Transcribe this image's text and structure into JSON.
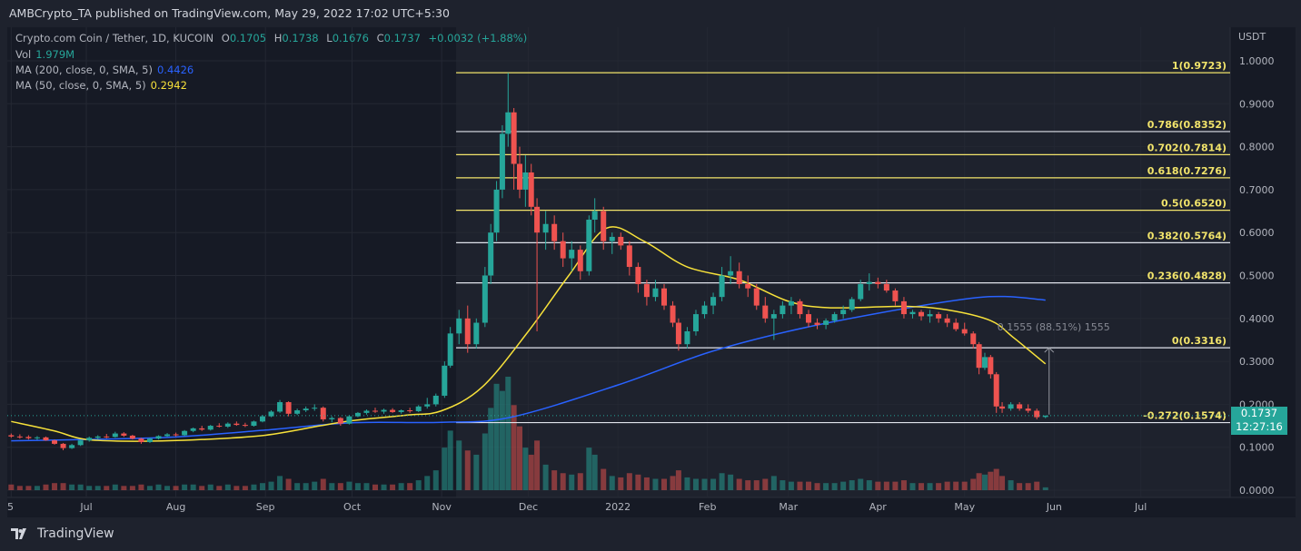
{
  "header": {
    "title": "AMBCrypto_TA published on TradingView.com, May 29, 2022 17:02 UTC+5:30"
  },
  "legend": {
    "symbol": "Crypto.com Coin / Tether, 1D, KUCOIN",
    "o_label": "O",
    "o": "0.1705",
    "h_label": "H",
    "h": "0.1738",
    "l_label": "L",
    "l": "0.1676",
    "c_label": "C",
    "c": "0.1737",
    "change": "+0.0032 (+1.88%)",
    "vol_label": "Vol",
    "vol": "1.979M",
    "ma200_label": "MA (200, close, 0, SMA, 5)",
    "ma200": "0.4426",
    "ma50_label": "MA (50, close, 0, SMA, 5)",
    "ma50": "0.2942"
  },
  "footer": {
    "brand": "TradingView"
  },
  "last_price": {
    "price": "0.1737",
    "countdown": "12:27:16"
  },
  "measure": {
    "label": "0.1555 (88.51%) 1555",
    "from": 0.1761,
    "to": 0.3316,
    "date": "2022-05-29"
  },
  "colors": {
    "up": "#26a69a",
    "down": "#ef5350",
    "ma200": "#2962ff",
    "ma50": "#f7e13a",
    "fib": "#f2e46b",
    "fib_white": "#e0e3eb",
    "background": "#161a25"
  },
  "chart_data": {
    "type": "candlestick",
    "currency": "USDT",
    "ylim": [
      0,
      1.0
    ],
    "y_ticks": [
      "1.0000",
      "0.9000",
      "0.8000",
      "0.7000",
      "0.6000",
      "0.5000",
      "0.4000",
      "0.3000",
      "0.2000",
      "0.1000",
      "0.0000"
    ],
    "x_ticks": [
      {
        "label": "5",
        "date": "2021-06-05"
      },
      {
        "label": "Jul",
        "date": "2021-07-01"
      },
      {
        "label": "Aug",
        "date": "2021-08-01"
      },
      {
        "label": "Sep",
        "date": "2021-09-01"
      },
      {
        "label": "Oct",
        "date": "2021-10-01"
      },
      {
        "label": "Nov",
        "date": "2021-11-01"
      },
      {
        "label": "Dec",
        "date": "2021-12-01"
      },
      {
        "label": "2022",
        "date": "2022-01-01"
      },
      {
        "label": "Feb",
        "date": "2022-02-01"
      },
      {
        "label": "Mar",
        "date": "2022-03-01"
      },
      {
        "label": "Apr",
        "date": "2022-04-01"
      },
      {
        "label": "May",
        "date": "2022-05-01"
      },
      {
        "label": "Jun",
        "date": "2022-06-01"
      },
      {
        "label": "Jul",
        "date": "2022-07-01"
      }
    ],
    "candles_columns": [
      "date",
      "open",
      "high",
      "low",
      "close",
      "volume_M"
    ],
    "candles": [
      [
        "2021-06-05",
        0.128,
        0.132,
        0.122,
        0.125,
        4
      ],
      [
        "2021-06-08",
        0.125,
        0.13,
        0.12,
        0.124,
        3
      ],
      [
        "2021-06-11",
        0.124,
        0.128,
        0.118,
        0.121,
        3
      ],
      [
        "2021-06-14",
        0.121,
        0.126,
        0.117,
        0.123,
        3
      ],
      [
        "2021-06-17",
        0.123,
        0.125,
        0.115,
        0.116,
        4
      ],
      [
        "2021-06-20",
        0.116,
        0.118,
        0.106,
        0.108,
        5
      ],
      [
        "2021-06-23",
        0.108,
        0.11,
        0.093,
        0.098,
        5
      ],
      [
        "2021-06-26",
        0.098,
        0.108,
        0.096,
        0.105,
        4
      ],
      [
        "2021-06-29",
        0.105,
        0.118,
        0.103,
        0.116,
        4
      ],
      [
        "2021-07-02",
        0.116,
        0.125,
        0.113,
        0.122,
        3
      ],
      [
        "2021-07-05",
        0.122,
        0.128,
        0.118,
        0.125,
        3
      ],
      [
        "2021-07-08",
        0.125,
        0.131,
        0.121,
        0.124,
        3
      ],
      [
        "2021-07-11",
        0.124,
        0.136,
        0.122,
        0.132,
        4
      ],
      [
        "2021-07-14",
        0.132,
        0.135,
        0.124,
        0.127,
        3
      ],
      [
        "2021-07-17",
        0.127,
        0.129,
        0.118,
        0.12,
        3
      ],
      [
        "2021-07-20",
        0.12,
        0.122,
        0.108,
        0.112,
        4
      ],
      [
        "2021-07-23",
        0.112,
        0.122,
        0.11,
        0.12,
        3
      ],
      [
        "2021-07-26",
        0.12,
        0.128,
        0.118,
        0.126,
        4
      ],
      [
        "2021-07-29",
        0.126,
        0.133,
        0.124,
        0.13,
        3
      ],
      [
        "2021-08-01",
        0.13,
        0.134,
        0.125,
        0.128,
        3
      ],
      [
        "2021-08-04",
        0.128,
        0.14,
        0.126,
        0.138,
        4
      ],
      [
        "2021-08-07",
        0.138,
        0.146,
        0.135,
        0.144,
        4
      ],
      [
        "2021-08-10",
        0.144,
        0.15,
        0.138,
        0.141,
        3
      ],
      [
        "2021-08-13",
        0.141,
        0.152,
        0.139,
        0.15,
        4
      ],
      [
        "2021-08-16",
        0.15,
        0.156,
        0.146,
        0.148,
        3
      ],
      [
        "2021-08-19",
        0.148,
        0.158,
        0.145,
        0.155,
        4
      ],
      [
        "2021-08-22",
        0.155,
        0.16,
        0.15,
        0.152,
        3
      ],
      [
        "2021-08-25",
        0.152,
        0.157,
        0.147,
        0.15,
        3
      ],
      [
        "2021-08-28",
        0.15,
        0.162,
        0.148,
        0.16,
        4
      ],
      [
        "2021-08-31",
        0.16,
        0.175,
        0.158,
        0.172,
        5
      ],
      [
        "2021-09-03",
        0.172,
        0.186,
        0.17,
        0.183,
        6
      ],
      [
        "2021-09-06",
        0.183,
        0.21,
        0.18,
        0.205,
        10
      ],
      [
        "2021-09-09",
        0.205,
        0.207,
        0.172,
        0.178,
        8
      ],
      [
        "2021-09-12",
        0.178,
        0.19,
        0.175,
        0.186,
        5
      ],
      [
        "2021-09-15",
        0.186,
        0.195,
        0.182,
        0.19,
        5
      ],
      [
        "2021-09-18",
        0.19,
        0.2,
        0.185,
        0.192,
        6
      ],
      [
        "2021-09-21",
        0.192,
        0.195,
        0.16,
        0.165,
        8
      ],
      [
        "2021-09-24",
        0.165,
        0.172,
        0.158,
        0.168,
        5
      ],
      [
        "2021-09-27",
        0.168,
        0.17,
        0.15,
        0.155,
        5
      ],
      [
        "2021-09-30",
        0.155,
        0.175,
        0.153,
        0.172,
        6
      ],
      [
        "2021-10-03",
        0.172,
        0.182,
        0.17,
        0.18,
        5
      ],
      [
        "2021-10-06",
        0.18,
        0.188,
        0.176,
        0.185,
        5
      ],
      [
        "2021-10-09",
        0.185,
        0.192,
        0.18,
        0.183,
        4
      ],
      [
        "2021-10-12",
        0.183,
        0.19,
        0.178,
        0.187,
        4
      ],
      [
        "2021-10-15",
        0.187,
        0.191,
        0.18,
        0.182,
        4
      ],
      [
        "2021-10-18",
        0.182,
        0.188,
        0.178,
        0.186,
        5
      ],
      [
        "2021-10-21",
        0.186,
        0.192,
        0.18,
        0.184,
        5
      ],
      [
        "2021-10-24",
        0.184,
        0.198,
        0.182,
        0.195,
        7
      ],
      [
        "2021-10-27",
        0.195,
        0.215,
        0.19,
        0.2,
        10
      ],
      [
        "2021-10-30",
        0.2,
        0.225,
        0.195,
        0.22,
        14
      ],
      [
        "2021-11-02",
        0.22,
        0.3,
        0.215,
        0.29,
        30
      ],
      [
        "2021-11-04",
        0.29,
        0.38,
        0.285,
        0.365,
        42
      ],
      [
        "2021-11-07",
        0.365,
        0.42,
        0.34,
        0.4,
        35
      ],
      [
        "2021-11-10",
        0.4,
        0.43,
        0.32,
        0.34,
        28
      ],
      [
        "2021-11-13",
        0.34,
        0.4,
        0.33,
        0.39,
        25
      ],
      [
        "2021-11-16",
        0.39,
        0.52,
        0.38,
        0.5,
        40
      ],
      [
        "2021-11-18",
        0.5,
        0.62,
        0.48,
        0.6,
        58
      ],
      [
        "2021-11-20",
        0.6,
        0.72,
        0.58,
        0.7,
        75
      ],
      [
        "2021-11-22",
        0.7,
        0.85,
        0.68,
        0.83,
        70
      ],
      [
        "2021-11-24",
        0.83,
        0.972,
        0.8,
        0.88,
        80
      ],
      [
        "2021-11-26",
        0.88,
        0.89,
        0.7,
        0.76,
        60
      ],
      [
        "2021-11-28",
        0.76,
        0.8,
        0.68,
        0.7,
        45
      ],
      [
        "2021-11-30",
        0.7,
        0.78,
        0.66,
        0.74,
        30
      ],
      [
        "2021-12-02",
        0.74,
        0.76,
        0.64,
        0.66,
        25
      ],
      [
        "2021-12-04",
        0.66,
        0.68,
        0.37,
        0.6,
        35
      ],
      [
        "2021-12-07",
        0.6,
        0.65,
        0.56,
        0.62,
        18
      ],
      [
        "2021-12-10",
        0.62,
        0.64,
        0.56,
        0.58,
        14
      ],
      [
        "2021-12-13",
        0.58,
        0.6,
        0.52,
        0.54,
        12
      ],
      [
        "2021-12-16",
        0.54,
        0.58,
        0.51,
        0.56,
        11
      ],
      [
        "2021-12-19",
        0.56,
        0.57,
        0.49,
        0.51,
        12
      ],
      [
        "2021-12-22",
        0.51,
        0.64,
        0.5,
        0.63,
        30
      ],
      [
        "2021-12-24",
        0.63,
        0.68,
        0.6,
        0.65,
        25
      ],
      [
        "2021-12-27",
        0.65,
        0.66,
        0.56,
        0.58,
        15
      ],
      [
        "2021-12-30",
        0.58,
        0.6,
        0.55,
        0.59,
        10
      ],
      [
        "2022-01-02",
        0.59,
        0.6,
        0.56,
        0.57,
        9
      ],
      [
        "2022-01-05",
        0.57,
        0.58,
        0.5,
        0.52,
        12
      ],
      [
        "2022-01-08",
        0.52,
        0.53,
        0.46,
        0.48,
        11
      ],
      [
        "2022-01-11",
        0.48,
        0.49,
        0.43,
        0.45,
        9
      ],
      [
        "2022-01-14",
        0.45,
        0.49,
        0.44,
        0.47,
        8
      ],
      [
        "2022-01-17",
        0.47,
        0.48,
        0.42,
        0.43,
        8
      ],
      [
        "2022-01-20",
        0.43,
        0.44,
        0.38,
        0.39,
        10
      ],
      [
        "2022-01-22",
        0.39,
        0.4,
        0.325,
        0.34,
        14
      ],
      [
        "2022-01-25",
        0.34,
        0.38,
        0.33,
        0.37,
        9
      ],
      [
        "2022-01-28",
        0.37,
        0.42,
        0.36,
        0.41,
        8
      ],
      [
        "2022-01-31",
        0.41,
        0.44,
        0.4,
        0.43,
        8
      ],
      [
        "2022-02-03",
        0.43,
        0.46,
        0.41,
        0.45,
        8
      ],
      [
        "2022-02-06",
        0.45,
        0.52,
        0.44,
        0.5,
        12
      ],
      [
        "2022-02-09",
        0.5,
        0.545,
        0.48,
        0.51,
        11
      ],
      [
        "2022-02-12",
        0.51,
        0.53,
        0.47,
        0.48,
        8
      ],
      [
        "2022-02-15",
        0.48,
        0.5,
        0.45,
        0.47,
        7
      ],
      [
        "2022-02-18",
        0.47,
        0.48,
        0.42,
        0.43,
        7
      ],
      [
        "2022-02-21",
        0.43,
        0.45,
        0.39,
        0.4,
        8
      ],
      [
        "2022-02-24",
        0.4,
        0.42,
        0.35,
        0.41,
        10
      ],
      [
        "2022-02-27",
        0.41,
        0.44,
        0.4,
        0.43,
        7
      ],
      [
        "2022-03-02",
        0.43,
        0.45,
        0.41,
        0.44,
        6
      ],
      [
        "2022-03-05",
        0.44,
        0.445,
        0.4,
        0.41,
        6
      ],
      [
        "2022-03-08",
        0.41,
        0.42,
        0.38,
        0.39,
        6
      ],
      [
        "2022-03-11",
        0.39,
        0.4,
        0.375,
        0.385,
        5
      ],
      [
        "2022-03-14",
        0.385,
        0.4,
        0.375,
        0.395,
        5
      ],
      [
        "2022-03-17",
        0.395,
        0.415,
        0.39,
        0.41,
        5
      ],
      [
        "2022-03-20",
        0.41,
        0.43,
        0.4,
        0.42,
        6
      ],
      [
        "2022-03-23",
        0.42,
        0.45,
        0.415,
        0.445,
        7
      ],
      [
        "2022-03-26",
        0.445,
        0.49,
        0.44,
        0.48,
        8
      ],
      [
        "2022-03-29",
        0.48,
        0.505,
        0.465,
        0.485,
        7
      ],
      [
        "2022-04-01",
        0.485,
        0.495,
        0.47,
        0.48,
        6
      ],
      [
        "2022-04-04",
        0.48,
        0.49,
        0.46,
        0.465,
        6
      ],
      [
        "2022-04-07",
        0.465,
        0.47,
        0.43,
        0.44,
        6
      ],
      [
        "2022-04-10",
        0.44,
        0.45,
        0.4,
        0.41,
        7
      ],
      [
        "2022-04-13",
        0.41,
        0.42,
        0.4,
        0.415,
        5
      ],
      [
        "2022-04-16",
        0.415,
        0.42,
        0.395,
        0.405,
        5
      ],
      [
        "2022-04-19",
        0.405,
        0.42,
        0.39,
        0.41,
        5
      ],
      [
        "2022-04-22",
        0.41,
        0.415,
        0.39,
        0.4,
        5
      ],
      [
        "2022-04-25",
        0.4,
        0.41,
        0.38,
        0.39,
        6
      ],
      [
        "2022-04-28",
        0.39,
        0.4,
        0.37,
        0.375,
        6
      ],
      [
        "2022-05-01",
        0.375,
        0.39,
        0.36,
        0.365,
        6
      ],
      [
        "2022-05-04",
        0.365,
        0.37,
        0.33,
        0.34,
        8
      ],
      [
        "2022-05-06",
        0.34,
        0.345,
        0.27,
        0.285,
        12
      ],
      [
        "2022-05-08",
        0.285,
        0.32,
        0.28,
        0.31,
        11
      ],
      [
        "2022-05-10",
        0.31,
        0.315,
        0.26,
        0.27,
        13
      ],
      [
        "2022-05-12",
        0.27,
        0.275,
        0.18,
        0.195,
        15
      ],
      [
        "2022-05-14",
        0.195,
        0.205,
        0.18,
        0.19,
        10
      ],
      [
        "2022-05-17",
        0.19,
        0.205,
        0.185,
        0.2,
        7
      ],
      [
        "2022-05-20",
        0.2,
        0.205,
        0.185,
        0.19,
        5
      ],
      [
        "2022-05-23",
        0.19,
        0.2,
        0.18,
        0.185,
        5
      ],
      [
        "2022-05-26",
        0.185,
        0.19,
        0.165,
        0.17,
        6
      ],
      [
        "2022-05-29",
        0.1705,
        0.1738,
        0.1676,
        0.1737,
        2
      ]
    ],
    "ma50": [
      [
        "2021-06-05",
        0.16
      ],
      [
        "2021-06-20",
        0.138
      ],
      [
        "2021-07-01",
        0.118
      ],
      [
        "2021-07-20",
        0.114
      ],
      [
        "2021-08-10",
        0.118
      ],
      [
        "2021-09-01",
        0.128
      ],
      [
        "2021-09-20",
        0.15
      ],
      [
        "2021-10-01",
        0.162
      ],
      [
        "2021-10-20",
        0.175
      ],
      [
        "2021-11-01",
        0.185
      ],
      [
        "2021-11-15",
        0.24
      ],
      [
        "2021-12-01",
        0.37
      ],
      [
        "2021-12-15",
        0.5
      ],
      [
        "2021-12-28",
        0.61
      ],
      [
        "2022-01-10",
        0.58
      ],
      [
        "2022-01-25",
        0.52
      ],
      [
        "2022-02-12",
        0.49
      ],
      [
        "2022-03-01",
        0.44
      ],
      [
        "2022-03-15",
        0.425
      ],
      [
        "2022-04-10",
        0.428
      ],
      [
        "2022-04-25",
        0.42
      ],
      [
        "2022-05-10",
        0.395
      ],
      [
        "2022-05-18",
        0.355
      ],
      [
        "2022-05-29",
        0.2942
      ]
    ],
    "ma200": [
      [
        "2021-06-05",
        0.115
      ],
      [
        "2021-07-01",
        0.118
      ],
      [
        "2021-08-01",
        0.124
      ],
      [
        "2021-09-01",
        0.14
      ],
      [
        "2021-10-01",
        0.157
      ],
      [
        "2021-11-01",
        0.158
      ],
      [
        "2021-11-25",
        0.17
      ],
      [
        "2022-01-01",
        0.245
      ],
      [
        "2022-02-01",
        0.32
      ],
      [
        "2022-03-01",
        0.37
      ],
      [
        "2022-04-01",
        0.412
      ],
      [
        "2022-05-01",
        0.445
      ],
      [
        "2022-05-15",
        0.451
      ],
      [
        "2022-05-29",
        0.4426
      ]
    ],
    "fib_levels": [
      {
        "label": "1(0.9723)",
        "price": 0.9723,
        "style": "yellow"
      },
      {
        "label": "0.786(0.8352)",
        "price": 0.8352,
        "style": "white"
      },
      {
        "label": "0.702(0.7814)",
        "price": 0.7814,
        "style": "yellow"
      },
      {
        "label": "0.618(0.7276)",
        "price": 0.7276,
        "style": "yellow"
      },
      {
        "label": "0.5(0.6520)",
        "price": 0.652,
        "style": "yellow"
      },
      {
        "label": "0.382(0.5764)",
        "price": 0.5764,
        "style": "white"
      },
      {
        "label": "0.236(0.4828)",
        "price": 0.4828,
        "style": "white"
      },
      {
        "label": "0(0.3316)",
        "price": 0.3316,
        "style": "white"
      },
      {
        "label": "-0.272(0.1574)",
        "price": 0.1574,
        "style": "white"
      }
    ],
    "fib_start_date": "2021-11-06"
  }
}
